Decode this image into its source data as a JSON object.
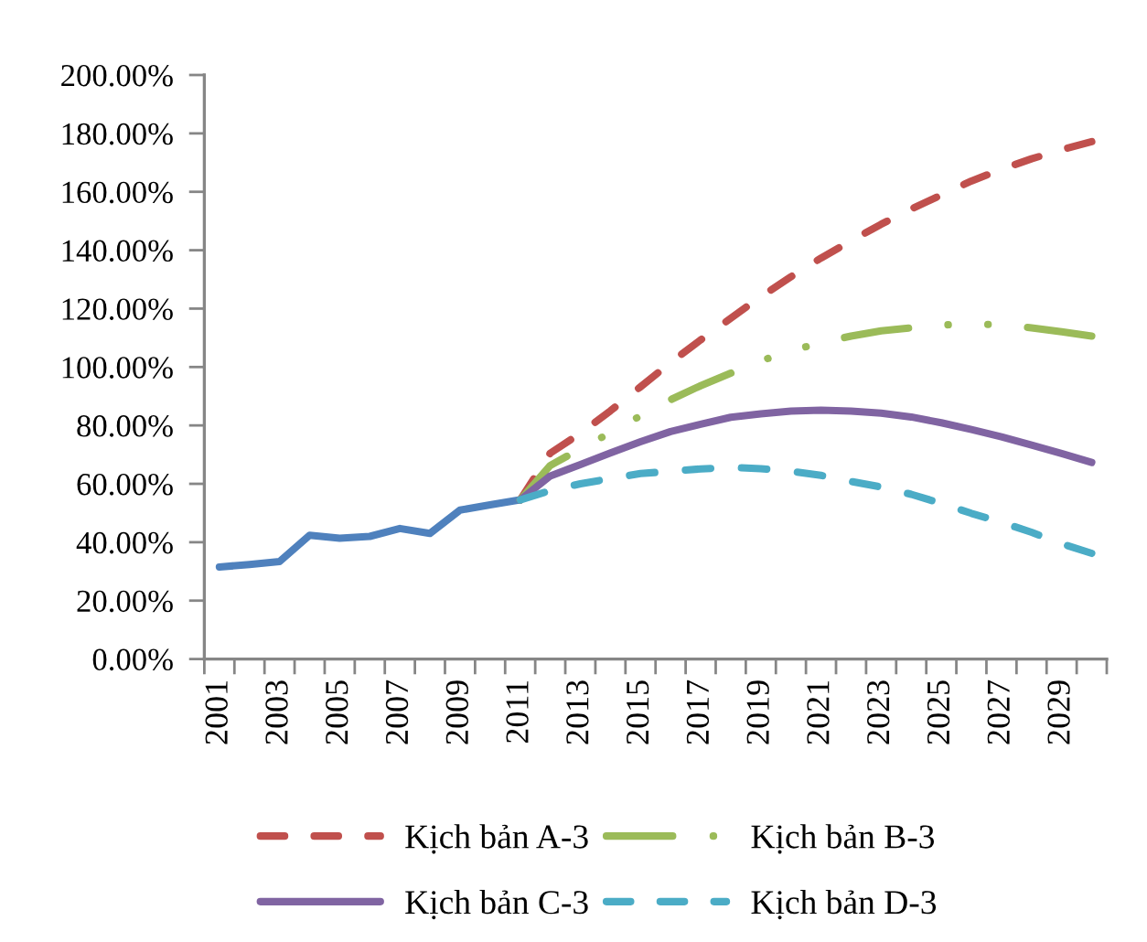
{
  "chart_data": {
    "type": "line",
    "categories": [
      "2001",
      null,
      "2003",
      null,
      "2005",
      null,
      "2007",
      null,
      "2009",
      null,
      "2011",
      null,
      "2013",
      null,
      "2015",
      null,
      "2017",
      null,
      "2019",
      null,
      "2021",
      null,
      "2023",
      null,
      "2025",
      null,
      "2027",
      null,
      "2029",
      null
    ],
    "series": [
      {
        "color": "#4f81bd",
        "line_style": "solid",
        "values": [
          31.5,
          32.4,
          33.4,
          42.4,
          41.4,
          42.0,
          44.7,
          43.0,
          51.0,
          52.8,
          54.5,
          null,
          null,
          null,
          null,
          null,
          null,
          null,
          null,
          null,
          null,
          null,
          null,
          null,
          null,
          null,
          null,
          null,
          null,
          null
        ]
      },
      {
        "name": "Kịch bản A-3",
        "color": "#c0504d",
        "line_style": "dashed",
        "values": [
          null,
          null,
          null,
          null,
          null,
          null,
          null,
          null,
          null,
          null,
          54.5,
          70.5,
          77.3,
          85.0,
          93.2,
          101.5,
          109.3,
          116.7,
          124.1,
          130.9,
          137.3,
          143.2,
          148.9,
          154.1,
          158.9,
          163.7,
          167.7,
          171.3,
          174.4,
          177.2
        ]
      },
      {
        "name": "Kịch bản B-3",
        "color": "#9bbb59",
        "line_style": "dashdot",
        "values": [
          null,
          null,
          null,
          null,
          null,
          null,
          null,
          null,
          null,
          null,
          54.5,
          66.3,
          72.0,
          77.5,
          83.3,
          88.8,
          93.6,
          97.9,
          102.1,
          105.6,
          108.3,
          110.6,
          112.4,
          113.4,
          114.4,
          114.7,
          114.5,
          113.4,
          112.1,
          110.6
        ]
      },
      {
        "name": "Kịch bản C-3",
        "color": "#8064a2",
        "line_style": "solid",
        "values": [
          null,
          null,
          null,
          null,
          null,
          null,
          null,
          null,
          null,
          null,
          54.5,
          62.7,
          66.6,
          70.6,
          74.4,
          77.9,
          80.4,
          82.8,
          84.0,
          84.9,
          85.2,
          84.9,
          84.2,
          82.9,
          80.9,
          78.6,
          76.1,
          73.3,
          70.4,
          67.3
        ]
      },
      {
        "name": "Kịch bản D-3",
        "color": "#4bacc6",
        "line_style": "dashed",
        "values": [
          null,
          null,
          null,
          null,
          null,
          null,
          null,
          null,
          null,
          null,
          54.5,
          57.7,
          60.0,
          61.8,
          63.5,
          64.3,
          65.1,
          65.6,
          65.2,
          64.3,
          62.9,
          60.8,
          58.9,
          56.4,
          53.3,
          49.9,
          46.8,
          43.4,
          39.5,
          36.2
        ]
      }
    ],
    "ylim": [
      0,
      200
    ],
    "yticks": [
      {
        "value": 0,
        "label": "0.00%"
      },
      {
        "value": 20,
        "label": "20.00%"
      },
      {
        "value": 40,
        "label": "40.00%"
      },
      {
        "value": 60,
        "label": "60.00%"
      },
      {
        "value": 80,
        "label": "80.00%"
      },
      {
        "value": 100,
        "label": "100.00%"
      },
      {
        "value": 120,
        "label": "120.00%"
      },
      {
        "value": 140,
        "label": "140.00%"
      },
      {
        "value": 160,
        "label": "160.00%"
      },
      {
        "value": 180,
        "label": "180.00%"
      },
      {
        "value": 200,
        "label": "200.00%"
      }
    ],
    "grid": false,
    "legend": "bottom"
  }
}
